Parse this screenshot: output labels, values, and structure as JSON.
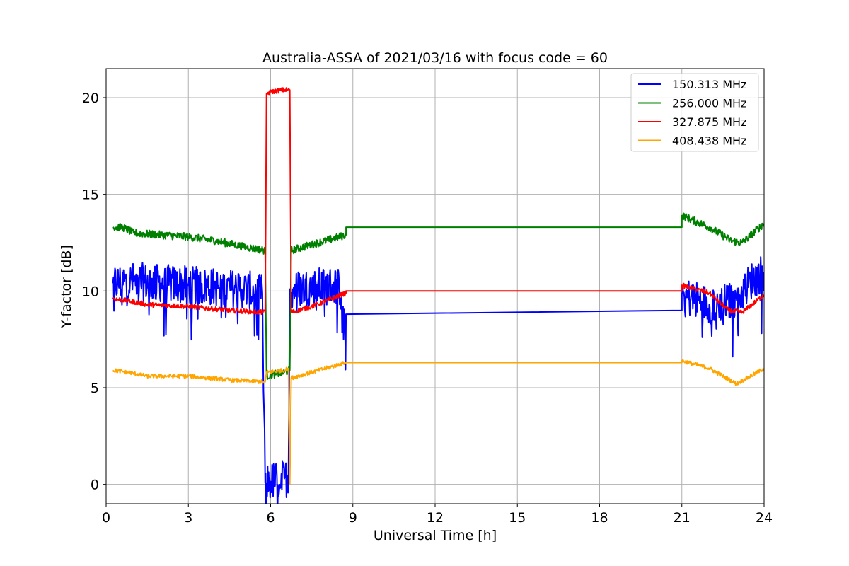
{
  "chart_data": {
    "type": "line",
    "title": "Australia-ASSA of 2021/03/16 with focus code = 60",
    "xlabel": "Universal Time [h]",
    "ylabel": "Y-factor [dB]",
    "xlim": [
      0,
      24
    ],
    "ylim": [
      -1,
      21.5
    ],
    "xticks": [
      0,
      3,
      6,
      9,
      12,
      15,
      18,
      21,
      24
    ],
    "yticks": [
      0,
      5,
      10,
      15,
      20
    ],
    "grid": true,
    "legend_position": "top-right",
    "series": [
      {
        "name": "150.313 MHz",
        "color": "#0000ff",
        "noise": 1.0,
        "points": [
          [
            0.25,
            10.4
          ],
          [
            1,
            10.5
          ],
          [
            2,
            10.4
          ],
          [
            3,
            10.3
          ],
          [
            4,
            10.2
          ],
          [
            5,
            10.1
          ],
          [
            5.7,
            9.9
          ],
          [
            5.8,
            0.1
          ],
          [
            6.0,
            0.15
          ],
          [
            6.5,
            0.3
          ],
          [
            6.65,
            0.35
          ],
          [
            6.7,
            10.1
          ],
          [
            7.5,
            10.2
          ],
          [
            8.5,
            10.3
          ],
          [
            8.75,
            8.8
          ],
          [
            21.0,
            9.0
          ],
          [
            21.0,
            9.8
          ],
          [
            22,
            9.3
          ],
          [
            23,
            9.5
          ],
          [
            23.5,
            10.5
          ],
          [
            24,
            11.0
          ]
        ]
      },
      {
        "name": "256.000 MHz",
        "color": "#008000",
        "noise": 0.2,
        "points": [
          [
            0.25,
            13.3
          ],
          [
            0.6,
            13.3
          ],
          [
            1,
            13.0
          ],
          [
            2,
            12.9
          ],
          [
            3,
            12.8
          ],
          [
            4,
            12.6
          ],
          [
            5,
            12.3
          ],
          [
            5.8,
            12.1
          ],
          [
            5.85,
            5.6
          ],
          [
            6.5,
            5.8
          ],
          [
            6.7,
            5.9
          ],
          [
            6.75,
            12.1
          ],
          [
            7.5,
            12.4
          ],
          [
            8.75,
            12.9
          ],
          [
            8.75,
            13.3
          ],
          [
            21.0,
            13.3
          ],
          [
            21.0,
            13.9
          ],
          [
            22,
            13.3
          ],
          [
            22.8,
            12.6
          ],
          [
            23.2,
            12.5
          ],
          [
            24,
            13.5
          ]
        ]
      },
      {
        "name": "327.875 MHz",
        "color": "#ff0000",
        "noise": 0.12,
        "points": [
          [
            0.25,
            9.6
          ],
          [
            0.8,
            9.5
          ],
          [
            1.5,
            9.3
          ],
          [
            3,
            9.2
          ],
          [
            4.5,
            9.0
          ],
          [
            5.7,
            8.9
          ],
          [
            5.8,
            8.9
          ],
          [
            5.85,
            20.2
          ],
          [
            6.0,
            20.3
          ],
          [
            6.5,
            20.4
          ],
          [
            6.7,
            20.4
          ],
          [
            6.75,
            8.9
          ],
          [
            7.5,
            9.2
          ],
          [
            8.75,
            9.9
          ],
          [
            8.75,
            10.0
          ],
          [
            21.0,
            10.0
          ],
          [
            21.0,
            10.3
          ],
          [
            22,
            9.9
          ],
          [
            22.7,
            9.0
          ],
          [
            23.2,
            8.9
          ],
          [
            24,
            9.8
          ]
        ]
      },
      {
        "name": "408.438 MHz",
        "color": "#ffa500",
        "noise": 0.1,
        "points": [
          [
            0.25,
            5.9
          ],
          [
            0.8,
            5.8
          ],
          [
            1.5,
            5.6
          ],
          [
            3,
            5.6
          ],
          [
            4.5,
            5.4
          ],
          [
            5.8,
            5.3
          ],
          [
            5.85,
            5.8
          ],
          [
            6.5,
            5.9
          ],
          [
            6.65,
            6.0
          ],
          [
            6.7,
            0.0
          ],
          [
            6.75,
            5.5
          ],
          [
            7.5,
            5.8
          ],
          [
            8.75,
            6.3
          ],
          [
            21.0,
            6.3
          ],
          [
            21.0,
            6.4
          ],
          [
            22,
            6.0
          ],
          [
            23,
            5.2
          ],
          [
            24,
            6.0
          ]
        ]
      }
    ]
  }
}
